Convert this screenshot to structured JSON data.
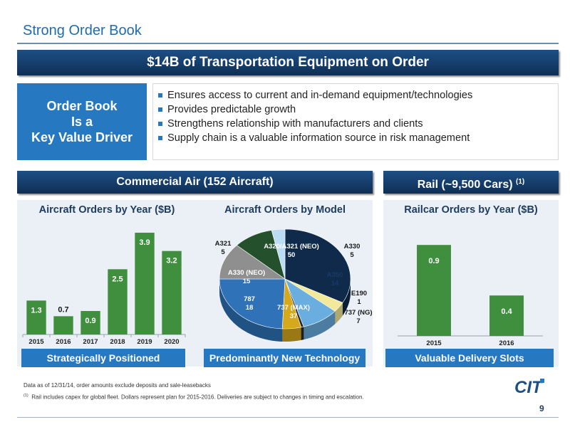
{
  "slide": {
    "title": "Strong Order Book",
    "banner": "$14B of Transportation Equipment on Order",
    "page_number": "9"
  },
  "driver": {
    "line1": "Order Book",
    "line2": "Is a",
    "line3": "Key Value Driver"
  },
  "bullets": [
    "Ensures access to current and in-demand equipment/technologies",
    "Provides predictable growth",
    "Strengthens relationship with manufacturers and clients",
    "Supply chain is a valuable information source in risk management"
  ],
  "panels": {
    "air_header": "Commercial Air (152 Aircraft)",
    "rail_header": "Rail (~9,500 Cars)",
    "rail_header_sup": "(1)",
    "air_foot_left": "Strategically Positioned",
    "air_foot_right": "Predominantly New Technology",
    "rail_foot": "Valuable Delivery Slots"
  },
  "notes": {
    "line1": "Data as of 12/31/14, order amounts exclude deposits and sale-leasebacks",
    "line2_sup": "(1)",
    "line2": "Rail includes capex for global fleet.  Dollars represent plan for 2015-2016.  Deliveries are subject to changes in timing and escalation."
  },
  "logo": {
    "text": "CIT",
    "color": "#1d4f85"
  },
  "colors": {
    "bar_green": "#3f8f3f",
    "header_navy": "#163f6e",
    "accent_blue": "#2678c0"
  },
  "chart_data": [
    {
      "type": "bar",
      "title": "Aircraft Orders by Year ($B)",
      "categories": [
        "2015",
        "2016",
        "2017",
        "2018",
        "2019",
        "2020"
      ],
      "values": [
        1.3,
        0.7,
        0.9,
        2.5,
        3.9,
        3.2
      ],
      "ylim": [
        0,
        4.2
      ],
      "grid": false
    },
    {
      "type": "pie",
      "title": "Aircraft Orders by Model",
      "slices": [
        {
          "label": "A320/A321 (NEO)",
          "value": 50,
          "color": "#0f2a4a"
        },
        {
          "label": "A330",
          "value": 5,
          "color": "#f3e99a"
        },
        {
          "label": "A350",
          "value": 14,
          "color": "#6aaee0"
        },
        {
          "label": "E190",
          "value": 1,
          "color": "#2a2a2a"
        },
        {
          "label": "737 (NG)",
          "value": 7,
          "color": "#d6a81c"
        },
        {
          "label": "737 (MAX)",
          "value": 37,
          "color": "#2f72b8"
        },
        {
          "label": "787",
          "value": 18,
          "color": "#8f8f8f"
        },
        {
          "label": "A330 (NEO)",
          "value": 15,
          "color": "#24502c"
        },
        {
          "label": "A321",
          "value": 5,
          "color": "#bcdcf3"
        }
      ]
    },
    {
      "type": "bar",
      "title": "Railcar Orders by Year ($B)",
      "categories": [
        "2015",
        "2016"
      ],
      "values": [
        0.9,
        0.4
      ],
      "ylim": [
        0,
        1.0
      ],
      "grid": false
    }
  ]
}
